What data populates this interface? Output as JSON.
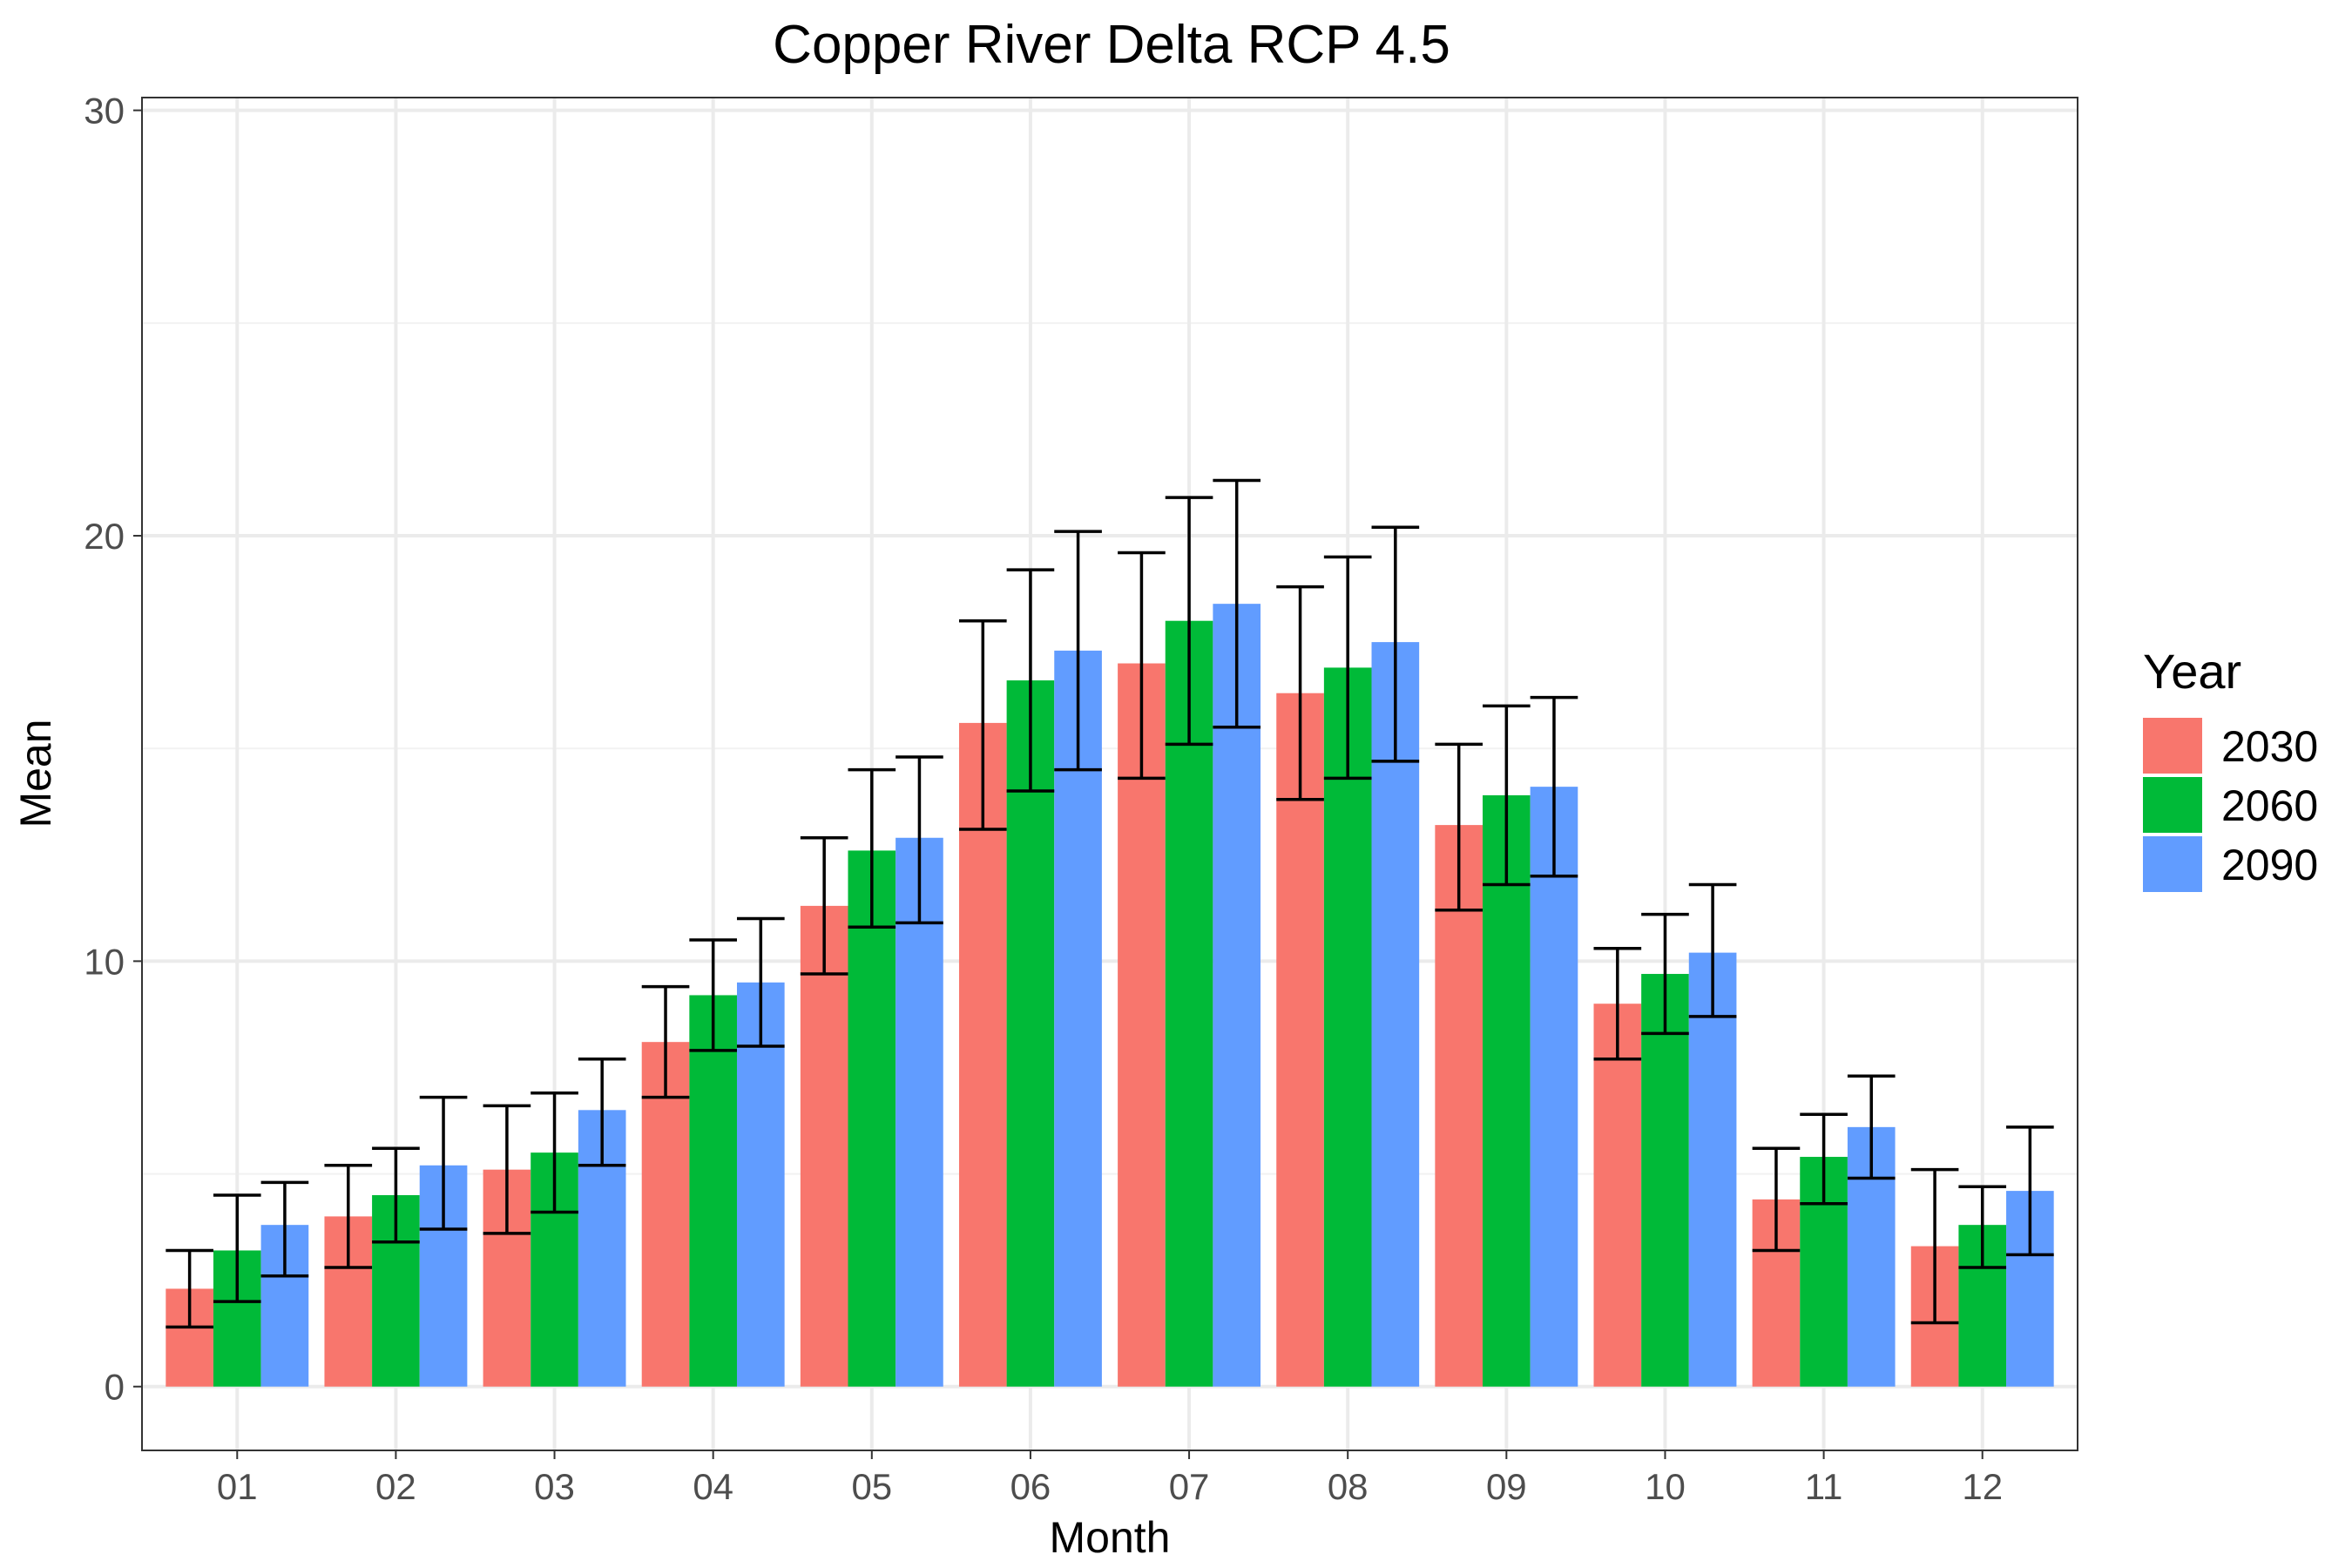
{
  "chart_data": {
    "type": "bar",
    "title": "Copper River Delta RCP 4.5",
    "xlabel": "Month",
    "ylabel": "Mean",
    "categories": [
      "01",
      "02",
      "03",
      "04",
      "05",
      "06",
      "07",
      "08",
      "09",
      "10",
      "11",
      "12"
    ],
    "ylim": [
      -1.5,
      30.3
    ],
    "yticks": [
      0,
      10,
      20,
      30
    ],
    "grid": true,
    "legend": {
      "title": "Year",
      "placement": "right"
    },
    "series": [
      {
        "name": "2030",
        "color": "#F8766D",
        "values": [
          2.3,
          4.0,
          5.1,
          8.1,
          11.3,
          15.6,
          17.0,
          16.3,
          13.2,
          9.0,
          4.4,
          3.3
        ],
        "error_low": [
          1.4,
          2.8,
          3.6,
          6.8,
          9.7,
          13.1,
          14.3,
          13.8,
          11.2,
          7.7,
          3.2,
          1.5
        ],
        "error_high": [
          3.2,
          5.2,
          6.6,
          9.4,
          12.9,
          18.0,
          19.6,
          18.8,
          15.1,
          10.3,
          5.6,
          5.1
        ]
      },
      {
        "name": "2060",
        "color": "#00BA38",
        "values": [
          3.2,
          4.5,
          5.5,
          9.2,
          12.6,
          16.6,
          18.0,
          16.9,
          13.9,
          9.7,
          5.4,
          3.8
        ],
        "error_low": [
          2.0,
          3.4,
          4.1,
          7.9,
          10.8,
          14.0,
          15.1,
          14.3,
          11.8,
          8.3,
          4.3,
          2.8
        ],
        "error_high": [
          4.5,
          5.6,
          6.9,
          10.5,
          14.5,
          19.2,
          20.9,
          19.5,
          16.0,
          11.1,
          6.4,
          4.7
        ]
      },
      {
        "name": "2090",
        "color": "#619CFF",
        "values": [
          3.8,
          5.2,
          6.5,
          9.5,
          12.9,
          17.3,
          18.4,
          17.5,
          14.1,
          10.2,
          6.1,
          4.6
        ],
        "error_low": [
          2.6,
          3.7,
          5.2,
          8.0,
          10.9,
          14.5,
          15.5,
          14.7,
          12.0,
          8.7,
          4.9,
          3.1
        ],
        "error_high": [
          4.8,
          6.8,
          7.7,
          11.0,
          14.8,
          20.1,
          21.3,
          20.2,
          16.2,
          11.8,
          7.3,
          6.1
        ]
      }
    ]
  }
}
